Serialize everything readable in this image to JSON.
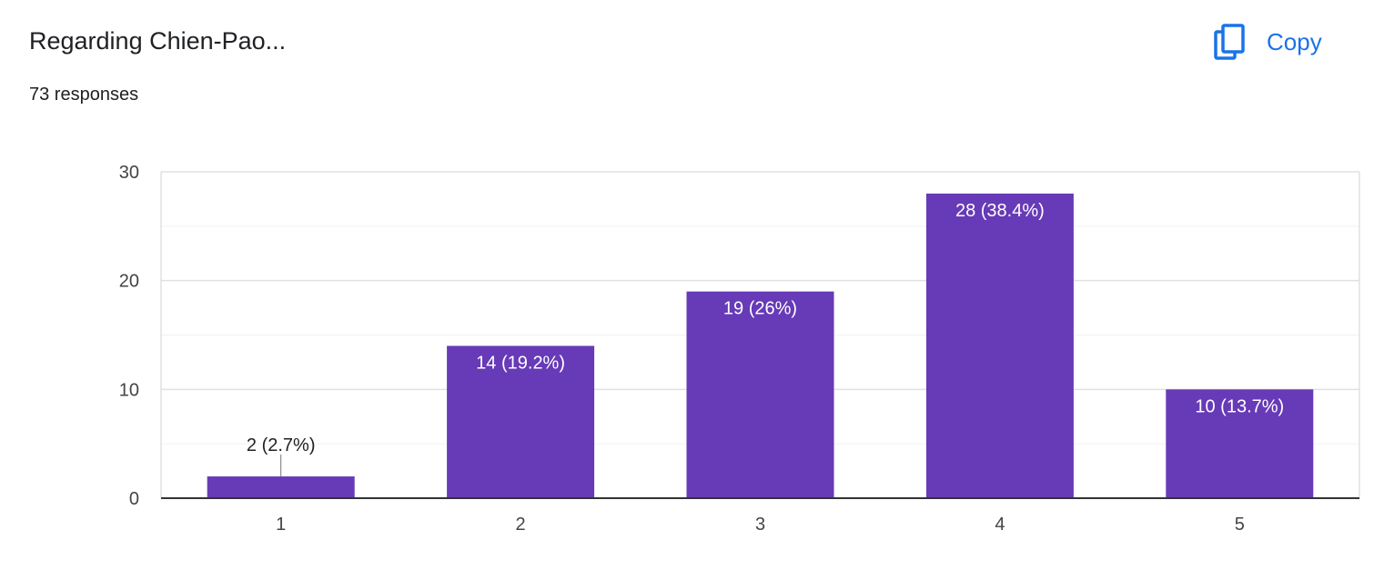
{
  "header": {
    "title": "Regarding Chien-Pao...",
    "responses": "73 responses"
  },
  "actions": {
    "copy_label": "Copy",
    "copy_icon": "copy-icon",
    "accent_color": "#1a73e8"
  },
  "chart_data": {
    "type": "bar",
    "categories": [
      "1",
      "2",
      "3",
      "4",
      "5"
    ],
    "values": [
      2,
      14,
      19,
      28,
      10
    ],
    "data_labels": [
      "2 (2.7%)",
      "14 (19.2%)",
      "19 (26%)",
      "28 (38.4%)",
      "10 (13.7%)"
    ],
    "ylim": [
      0,
      30
    ],
    "yticks": [
      0,
      10,
      20,
      30
    ],
    "minor_gridlines": [
      5,
      15,
      25
    ],
    "grid": true,
    "legend": "none",
    "bar_color": "#673ab7",
    "title": "",
    "xlabel": "",
    "ylabel": ""
  }
}
